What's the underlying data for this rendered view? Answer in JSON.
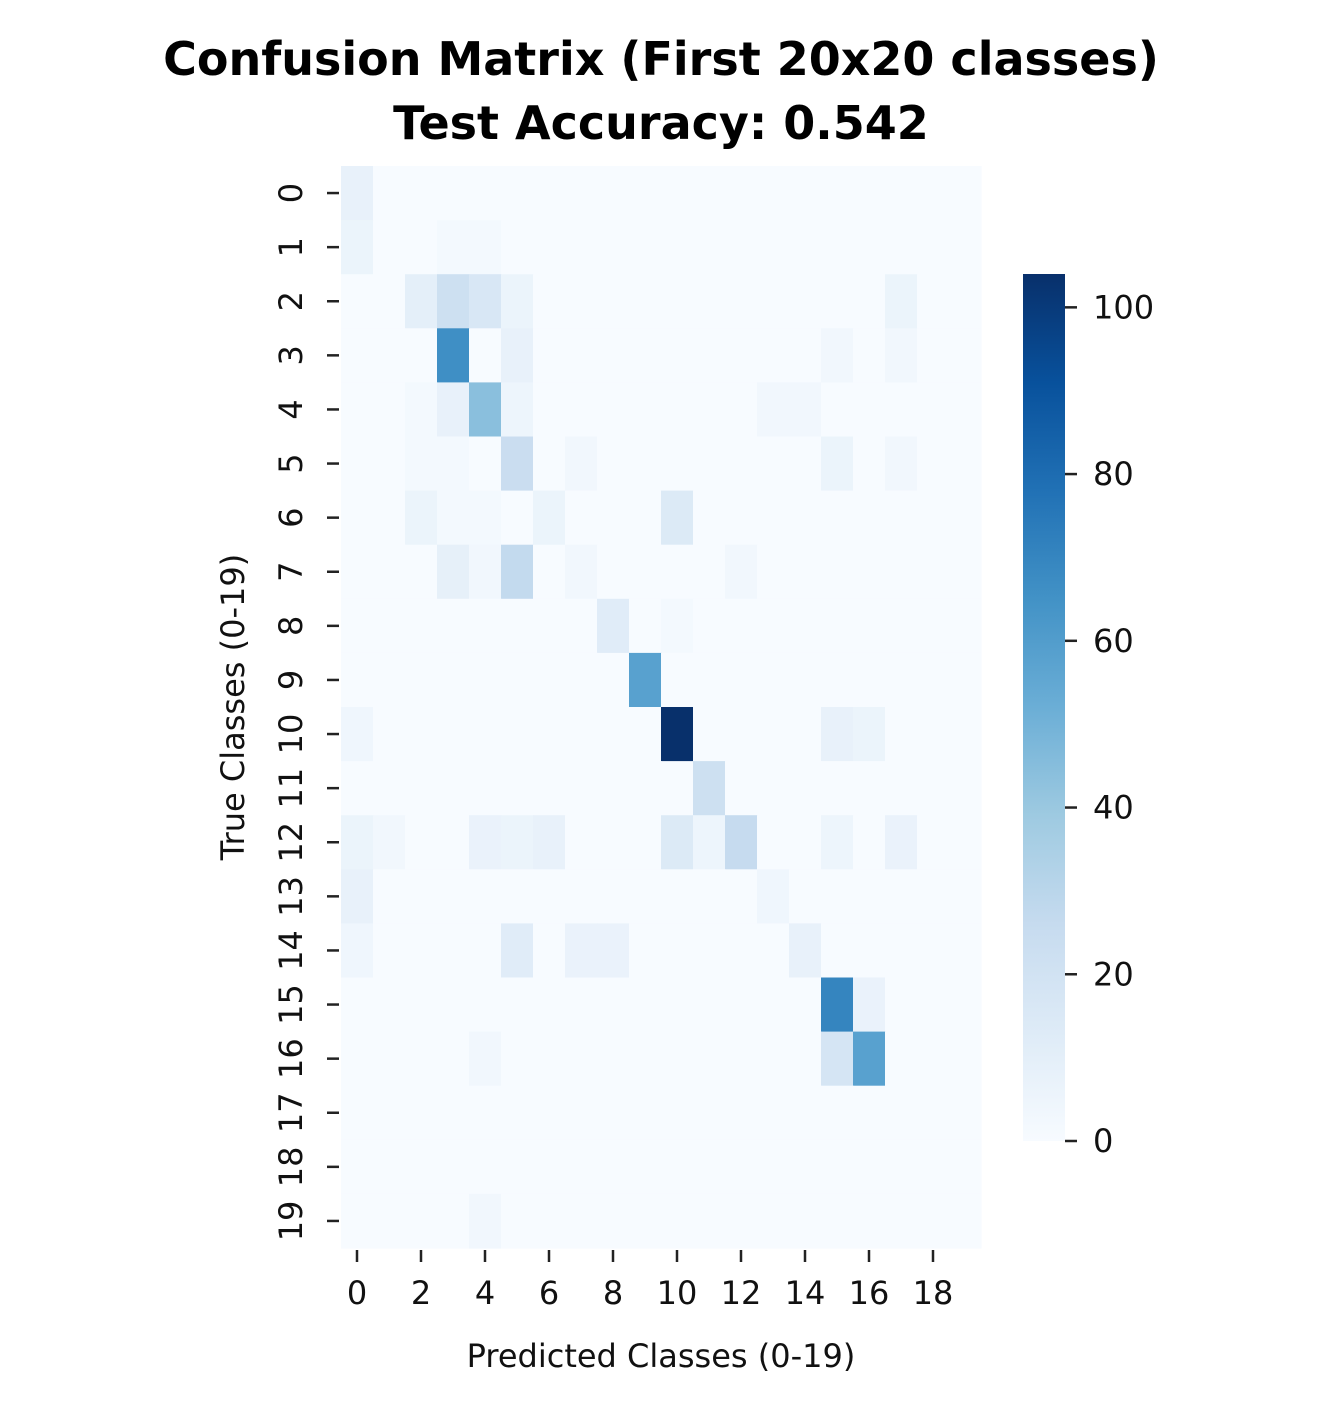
{
  "chart_data": {
    "type": "heatmap",
    "title": "Confusion Matrix (First 20x20 classes)",
    "subtitle": "Test Accuracy: 0.542",
    "xlabel": "Predicted Classes (0-19)",
    "ylabel": "True Classes (0-19)",
    "x_categories": [
      "0",
      "1",
      "2",
      "3",
      "4",
      "5",
      "6",
      "7",
      "8",
      "9",
      "10",
      "11",
      "12",
      "13",
      "14",
      "15",
      "16",
      "17",
      "18",
      "19"
    ],
    "y_categories": [
      "0",
      "1",
      "2",
      "3",
      "4",
      "5",
      "6",
      "7",
      "8",
      "9",
      "10",
      "11",
      "12",
      "13",
      "14",
      "15",
      "16",
      "17",
      "18",
      "19"
    ],
    "x_tick_labels": [
      "0",
      "2",
      "4",
      "6",
      "8",
      "10",
      "12",
      "14",
      "16",
      "18"
    ],
    "colormap": "Blues",
    "vmin": 0,
    "vmax": 104,
    "colorbar_ticks": [
      0,
      20,
      40,
      60,
      80,
      100
    ],
    "colorbar_tick_labels": [
      "0",
      "20",
      "40",
      "60",
      "80",
      "100"
    ],
    "matrix": [
      [
        8,
        0,
        0,
        0,
        0,
        0,
        0,
        0,
        0,
        0,
        0,
        0,
        0,
        0,
        0,
        0,
        0,
        0,
        0,
        0
      ],
      [
        6,
        0,
        0,
        2,
        2,
        0,
        0,
        0,
        0,
        0,
        0,
        0,
        0,
        0,
        0,
        0,
        0,
        0,
        0,
        0
      ],
      [
        0,
        0,
        10,
        22,
        16,
        6,
        0,
        0,
        0,
        0,
        0,
        0,
        0,
        0,
        0,
        0,
        0,
        6,
        0,
        0
      ],
      [
        0,
        0,
        0,
        66,
        0,
        8,
        0,
        0,
        0,
        0,
        0,
        0,
        0,
        0,
        0,
        3,
        0,
        3,
        0,
        0
      ],
      [
        0,
        0,
        2,
        8,
        44,
        5,
        0,
        0,
        0,
        0,
        0,
        0,
        0,
        3,
        3,
        0,
        0,
        0,
        0,
        0
      ],
      [
        0,
        0,
        2,
        2,
        0,
        24,
        0,
        3,
        0,
        0,
        0,
        0,
        0,
        0,
        0,
        6,
        0,
        3,
        0,
        0
      ],
      [
        0,
        0,
        6,
        2,
        2,
        0,
        6,
        0,
        0,
        0,
        14,
        0,
        0,
        0,
        0,
        0,
        0,
        0,
        0,
        0
      ],
      [
        0,
        0,
        0,
        9,
        3,
        27,
        0,
        3,
        0,
        0,
        0,
        0,
        3,
        0,
        0,
        0,
        0,
        0,
        0,
        0
      ],
      [
        0,
        0,
        0,
        0,
        0,
        0,
        0,
        0,
        12,
        0,
        2,
        0,
        0,
        0,
        0,
        0,
        0,
        0,
        0,
        0
      ],
      [
        0,
        0,
        0,
        0,
        0,
        0,
        0,
        0,
        0,
        58,
        0,
        0,
        0,
        0,
        0,
        0,
        0,
        0,
        0,
        0
      ],
      [
        4,
        0,
        0,
        0,
        0,
        0,
        0,
        0,
        0,
        0,
        104,
        0,
        0,
        0,
        0,
        8,
        6,
        0,
        0,
        0
      ],
      [
        0,
        0,
        0,
        0,
        0,
        0,
        0,
        0,
        0,
        0,
        0,
        22,
        0,
        0,
        0,
        0,
        0,
        0,
        0,
        0
      ],
      [
        6,
        3,
        0,
        0,
        7,
        6,
        8,
        0,
        0,
        0,
        14,
        5,
        26,
        0,
        0,
        5,
        0,
        7,
        0,
        0
      ],
      [
        8,
        0,
        0,
        0,
        0,
        0,
        0,
        0,
        0,
        0,
        0,
        0,
        0,
        4,
        0,
        0,
        0,
        0,
        0,
        0
      ],
      [
        4,
        0,
        0,
        0,
        0,
        12,
        0,
        7,
        7,
        0,
        0,
        0,
        0,
        0,
        8,
        0,
        0,
        0,
        0,
        0
      ],
      [
        0,
        0,
        0,
        0,
        0,
        0,
        0,
        0,
        0,
        0,
        0,
        0,
        0,
        0,
        0,
        70,
        7,
        0,
        0,
        0
      ],
      [
        0,
        0,
        0,
        0,
        3,
        0,
        0,
        0,
        0,
        0,
        0,
        0,
        0,
        0,
        0,
        18,
        58,
        0,
        0,
        0
      ],
      [
        0,
        0,
        0,
        0,
        0,
        0,
        0,
        0,
        0,
        0,
        0,
        0,
        0,
        0,
        0,
        0,
        0,
        0,
        0,
        0
      ],
      [
        0,
        0,
        0,
        0,
        0,
        0,
        0,
        0,
        0,
        0,
        0,
        0,
        0,
        0,
        0,
        0,
        0,
        0,
        0,
        0
      ],
      [
        0,
        0,
        0,
        0,
        3,
        0,
        0,
        0,
        0,
        0,
        0,
        0,
        0,
        0,
        0,
        0,
        0,
        0,
        0,
        0
      ]
    ]
  }
}
